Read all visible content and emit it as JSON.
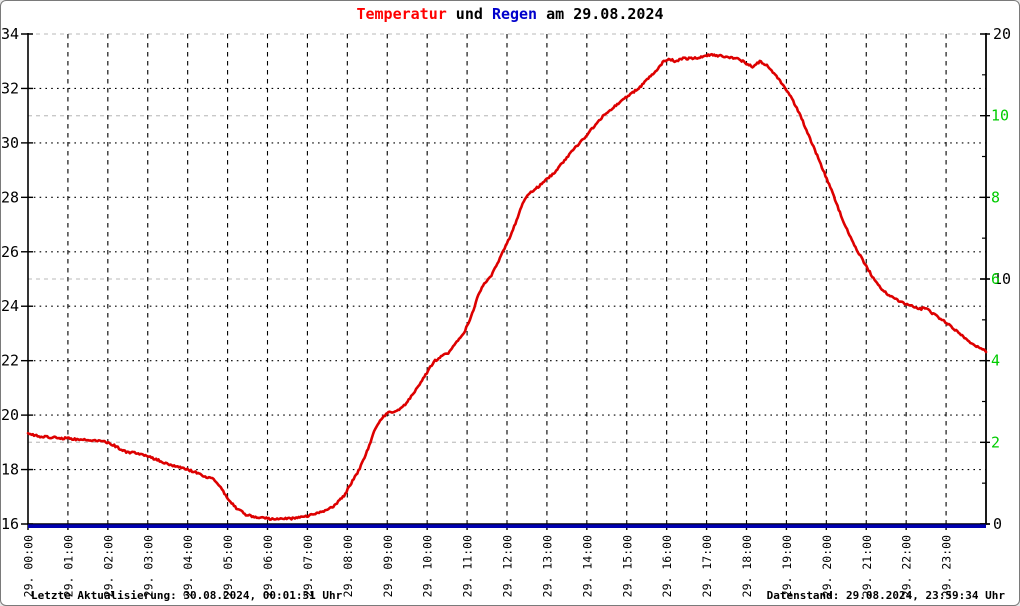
{
  "title": {
    "segments": [
      {
        "text": "Temperatur",
        "color": "#ff0000"
      },
      {
        "text": " und ",
        "color": "#000000"
      },
      {
        "text": "Regen",
        "color": "#0000cc"
      },
      {
        "text": " am 29.08.2024",
        "color": "#000000"
      }
    ],
    "full": "Temperatur und Regen am 29.08.2024"
  },
  "footer": {
    "left": "Letzte Aktualisierung: 30.08.2024, 00:01:31 Uhr",
    "right": "Datenstand: 29.08.2024, 23:59:34 Uhr"
  },
  "colors": {
    "temperature_line": "#dd0000",
    "rain_line": "#0000b0",
    "grid_black": "#000000",
    "grid_grey": "#c8c8c8",
    "right_axis_green": "#00cc00",
    "axis_black": "#000000"
  },
  "chart_data": {
    "type": "line",
    "title": "Temperatur und Regen am 29.08.2024",
    "grid": true,
    "x_axis": {
      "min_hours": 0,
      "max_hours": 24,
      "tick_every_hours": 1,
      "labels": [
        "29. 00:00",
        "29. 01:00",
        "29. 02:00",
        "29. 03:00",
        "29. 04:00",
        "29. 05:00",
        "29. 06:00",
        "29. 07:00",
        "29. 08:00",
        "29. 09:00",
        "29. 10:00",
        "29. 11:00",
        "29. 12:00",
        "29. 13:00",
        "29. 14:00",
        "29. 15:00",
        "29. 16:00",
        "29. 17:00",
        "29. 18:00",
        "29. 19:00",
        "29. 20:00",
        "29. 21:00",
        "29. 22:00",
        "29. 23:00"
      ]
    },
    "left_axis": {
      "min": 16,
      "max": 34,
      "tick_step": 2,
      "tick_labels": [
        16,
        18,
        20,
        22,
        24,
        26,
        28,
        30,
        32,
        34
      ],
      "gridline_values": [
        18,
        20,
        22,
        24,
        26,
        28,
        30,
        32
      ]
    },
    "right_axis_rain": {
      "min": 0,
      "max": 12,
      "labeled_ticks": [
        0,
        2,
        4,
        6,
        8,
        10
      ],
      "minor_ticks": [
        1,
        3,
        5,
        7,
        9,
        11
      ],
      "grey_gridline_values": [
        2,
        6,
        10,
        12
      ],
      "color": "#00cc00"
    },
    "right_axis_secondary": {
      "min": 0,
      "max": 20,
      "labeled_ticks": [
        0,
        10,
        20
      ],
      "color": "#000000"
    },
    "series": [
      {
        "name": "Temperatur",
        "axis": "left",
        "color": "#dd0000",
        "x": [
          0,
          0.3,
          0.6,
          0.9,
          1.2,
          1.5,
          1.8,
          2.0,
          2.2,
          2.45,
          2.7,
          3.0,
          3.25,
          3.5,
          3.75,
          4.0,
          4.2,
          4.4,
          4.6,
          4.8,
          5.0,
          5.2,
          5.45,
          5.7,
          6.0,
          6.3,
          6.6,
          6.9,
          7.15,
          7.4,
          7.65,
          7.9,
          8.1,
          8.3,
          8.5,
          8.7,
          8.9,
          9.05,
          9.25,
          9.45,
          9.65,
          9.85,
          10.05,
          10.2,
          10.35,
          10.55,
          10.75,
          10.95,
          11.15,
          11.3,
          11.45,
          11.6,
          11.8,
          12.0,
          12.2,
          12.4,
          12.55,
          12.75,
          12.95,
          13.15,
          13.35,
          13.55,
          13.75,
          13.95,
          14.15,
          14.35,
          14.5,
          14.7,
          14.9,
          15.1,
          15.3,
          15.5,
          15.7,
          15.9,
          16.05,
          16.2,
          16.4,
          16.65,
          16.9,
          17.1,
          17.3,
          17.55,
          17.8,
          18.0,
          18.15,
          18.35,
          18.55,
          18.75,
          18.95,
          19.15,
          19.35,
          19.55,
          19.75,
          19.95,
          20.15,
          20.35,
          20.55,
          20.75,
          20.95,
          21.15,
          21.35,
          21.55,
          21.75,
          21.95,
          22.15,
          22.35,
          22.5,
          22.65,
          22.85,
          23.05,
          23.25,
          23.45,
          23.65,
          23.85,
          24.0
        ],
        "y": [
          19.3,
          19.22,
          19.18,
          19.15,
          19.12,
          19.1,
          19.05,
          19.0,
          18.85,
          18.65,
          18.6,
          18.5,
          18.35,
          18.2,
          18.1,
          18.0,
          17.9,
          17.75,
          17.7,
          17.4,
          16.95,
          16.6,
          16.35,
          16.25,
          16.2,
          16.18,
          16.2,
          16.25,
          16.35,
          16.45,
          16.65,
          17.0,
          17.5,
          18.0,
          18.7,
          19.5,
          19.95,
          20.1,
          20.15,
          20.4,
          20.8,
          21.2,
          21.7,
          22.0,
          22.15,
          22.3,
          22.7,
          23.1,
          23.8,
          24.5,
          24.85,
          25.1,
          25.7,
          26.3,
          27.0,
          27.8,
          28.15,
          28.35,
          28.6,
          28.85,
          29.2,
          29.55,
          29.9,
          30.2,
          30.55,
          30.9,
          31.1,
          31.35,
          31.6,
          31.8,
          32.0,
          32.3,
          32.6,
          32.95,
          33.1,
          33.0,
          33.1,
          33.1,
          33.15,
          33.25,
          33.2,
          33.15,
          33.1,
          32.9,
          32.8,
          33.0,
          32.8,
          32.45,
          32.05,
          31.6,
          31.0,
          30.3,
          29.6,
          28.9,
          28.2,
          27.4,
          26.7,
          26.1,
          25.6,
          25.1,
          24.7,
          24.4,
          24.25,
          24.1,
          24.0,
          23.9,
          23.95,
          23.75,
          23.55,
          23.35,
          23.1,
          22.85,
          22.6,
          22.45,
          22.35
        ]
      },
      {
        "name": "Regen",
        "axis": "rain",
        "color": "#0000b0",
        "x": [
          0,
          24
        ],
        "y": [
          0,
          0
        ]
      }
    ]
  }
}
